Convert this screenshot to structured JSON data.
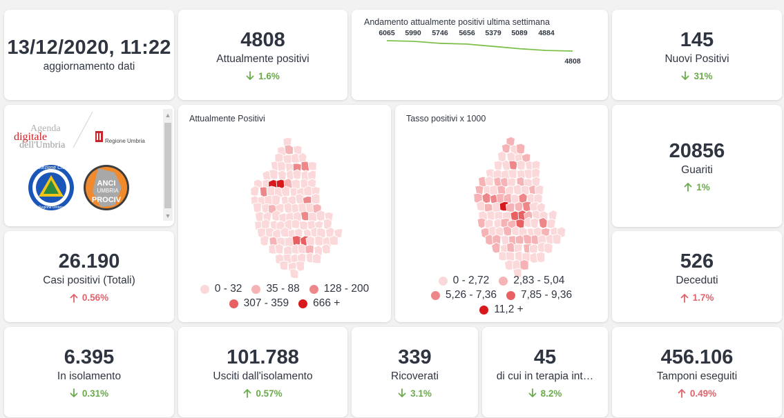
{
  "update": {
    "value": "13/12/2020, 11:22",
    "label": "aggiornamento dati"
  },
  "kpis": {
    "attualmente_positivi": {
      "value": "4808",
      "label": "Attualmente positivi",
      "change": "1.6%",
      "direction": "down",
      "color": "#6aaa4b"
    },
    "nuovi_positivi": {
      "value": "145",
      "label": "Nuovi Positivi",
      "change": "31%",
      "direction": "down",
      "color": "#6aaa4b"
    },
    "guariti": {
      "value": "20856",
      "label": "Guariti",
      "change": "1%",
      "direction": "up",
      "color": "#6aaa4b"
    },
    "casi_totali": {
      "value": "26.190",
      "label": "Casi positivi (Totali)",
      "change": "0.56%",
      "direction": "up",
      "color": "#e0626a"
    },
    "deceduti": {
      "value": "526",
      "label": "Deceduti",
      "change": "1.7%",
      "direction": "up",
      "color": "#e0626a"
    },
    "isolamento": {
      "value": "6.395",
      "label": "In isolamento",
      "change": "0.31%",
      "direction": "down",
      "color": "#6aaa4b"
    },
    "usciti": {
      "value": "101.788",
      "label": "Usciti dall'isolamento",
      "change": "0.57%",
      "direction": "up",
      "color": "#6aaa4b"
    },
    "ricoverati": {
      "value": "339",
      "label": "Ricoverati",
      "change": "3.1%",
      "direction": "down",
      "color": "#6aaa4b"
    },
    "terapia": {
      "value": "45",
      "label": "di cui in terapia int…",
      "change": "8.2%",
      "direction": "down",
      "color": "#6aaa4b"
    },
    "tamponi": {
      "value": "456.106",
      "label": "Tamponi eseguiti",
      "change": "0.49%",
      "direction": "up",
      "color": "#e0626a"
    }
  },
  "chart_data": {
    "type": "line",
    "title": "Andamento attualmente positivi ultima settimana",
    "values": [
      6065,
      5990,
      5746,
      5656,
      5379,
      5089,
      4884,
      4808
    ],
    "data_labels": [
      "6065",
      "5990",
      "5746",
      "5656",
      "5379",
      "5089",
      "4884",
      "4808"
    ],
    "color": "#7cc04b"
  },
  "logos": {
    "agenda_line1": "Agenda",
    "agenda_line2": "digitale",
    "agenda_line3": "dell'Umbria",
    "regione": "Regione Umbria",
    "protezione": "Protezione Civile",
    "protezione_sub": "Regione Umbria",
    "anci1": "ANCI",
    "anci2": "UMBRIA",
    "anci3": "PROCIV"
  },
  "map1": {
    "title": "Attualmente Positivi",
    "legend": [
      {
        "label": "0 - 32",
        "color": "#fbd9da"
      },
      {
        "label": "35 - 88",
        "color": "#f6b3b5"
      },
      {
        "label": "128 - 200",
        "color": "#ee8789"
      },
      {
        "label": "307 - 359",
        "color": "#e86062"
      },
      {
        "label": "666 +",
        "color": "#d7191c"
      }
    ]
  },
  "map2": {
    "title": "Tasso positivi x 1000",
    "legend": [
      {
        "label": "0 - 2,72",
        "color": "#fbd9da"
      },
      {
        "label": "2,83 - 5,04",
        "color": "#f6b3b5"
      },
      {
        "label": "5,26 - 7,36",
        "color": "#ee8789"
      },
      {
        "label": "7,85 - 9,36",
        "color": "#e86062"
      },
      {
        "label": "11,2 +",
        "color": "#d7191c"
      }
    ]
  }
}
